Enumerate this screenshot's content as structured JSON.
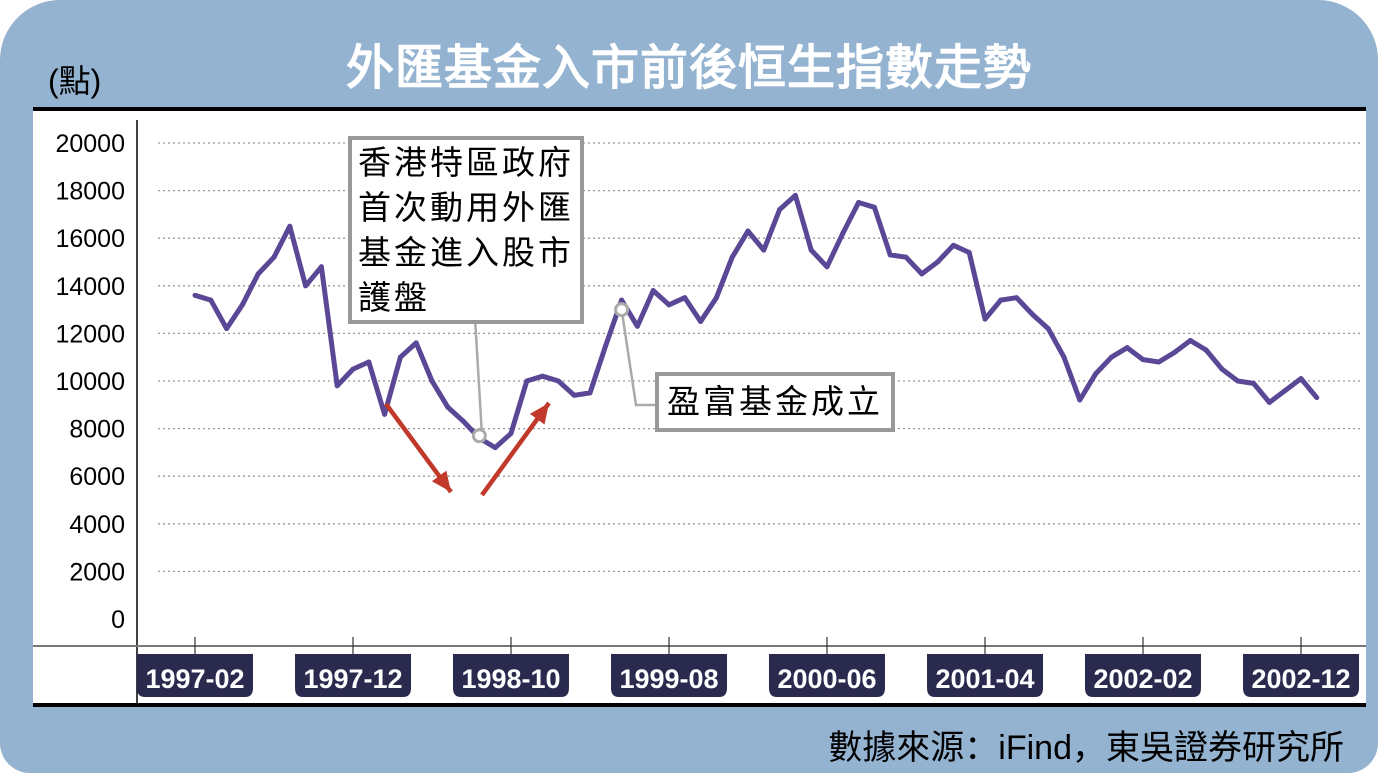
{
  "title": "外匯基金入市前後恒生指數走勢",
  "unit_label": "(點)",
  "source": "數據來源：iFind，東吳證券研究所",
  "colors": {
    "background": "#93b3d1",
    "line": "#5a4796",
    "arrow": "#c0392b",
    "label_bg": "#2a2a4e",
    "annotation_border": "#999999"
  },
  "chart_data": {
    "type": "line",
    "title": "外匯基金入市前後恒生指數走勢",
    "ylabel": "(點)",
    "ylim": [
      0,
      20000
    ],
    "yticks": [
      "0",
      "2000",
      "4000",
      "6000",
      "8000",
      "10000",
      "12000",
      "14000",
      "16000",
      "18000",
      "20000"
    ],
    "xticks": [
      "1997-02",
      "1997-12",
      "1998-10",
      "1999-08",
      "2000-06",
      "2001-04",
      "2002-02",
      "2002-12"
    ],
    "grid": "horizontal dotted",
    "series": [
      {
        "x": [
          "1997-02",
          "1997-03",
          "1997-04",
          "1997-05",
          "1997-06",
          "1997-07",
          "1997-08",
          "1997-09",
          "1997-10",
          "1997-11",
          "1997-12",
          "1998-01",
          "1998-02",
          "1998-03",
          "1998-04",
          "1998-05",
          "1998-06",
          "1998-07",
          "1998-08",
          "1998-09",
          "1998-10",
          "1998-11",
          "1998-12",
          "1999-01",
          "1999-02",
          "1999-03",
          "1999-04",
          "1999-05",
          "1999-06",
          "1999-07",
          "1999-08",
          "1999-09",
          "1999-10",
          "1999-11",
          "1999-12",
          "2000-01",
          "2000-02",
          "2000-03",
          "2000-04",
          "2000-05",
          "2000-06",
          "2000-07",
          "2000-08",
          "2000-09",
          "2000-10",
          "2000-11",
          "2000-12",
          "2001-01",
          "2001-02",
          "2001-03",
          "2001-04",
          "2001-05",
          "2001-06",
          "2001-07",
          "2001-08",
          "2001-09",
          "2001-10",
          "2001-11",
          "2001-12",
          "2002-01",
          "2002-02",
          "2002-03",
          "2002-04",
          "2002-05",
          "2002-06",
          "2002-07",
          "2002-08",
          "2002-09",
          "2002-10",
          "2002-11",
          "2002-12",
          "2003-01"
        ],
        "values": [
          13600,
          13400,
          12200,
          13200,
          14500,
          15200,
          16500,
          14000,
          14800,
          9800,
          10500,
          10800,
          8600,
          11000,
          11600,
          10000,
          8900,
          8300,
          7600,
          7200,
          7800,
          10000,
          10200,
          10000,
          9400,
          9500,
          11500,
          13400,
          12300,
          13800,
          13200,
          13500,
          12500,
          13500,
          15200,
          16300,
          15500,
          17200,
          17800,
          15500,
          14800,
          16200,
          17500,
          17300,
          15300,
          15200,
          14500,
          15000,
          15700,
          15400,
          12600,
          13400,
          13500,
          12800,
          12200,
          11000,
          9200,
          10300,
          11000,
          11400,
          10900,
          10800,
          11200,
          11700,
          11300,
          10500,
          10000,
          9900,
          9100,
          9600,
          10100,
          9300
        ]
      }
    ],
    "annotations": [
      {
        "text_lines": [
          "香港特區政府",
          "首次動用外匯",
          "基金進入股市",
          "護盤"
        ],
        "x": "1998-08",
        "y": 7700
      },
      {
        "text": "盈富基金成立",
        "x": "1999-05",
        "y": 13000
      }
    ]
  }
}
